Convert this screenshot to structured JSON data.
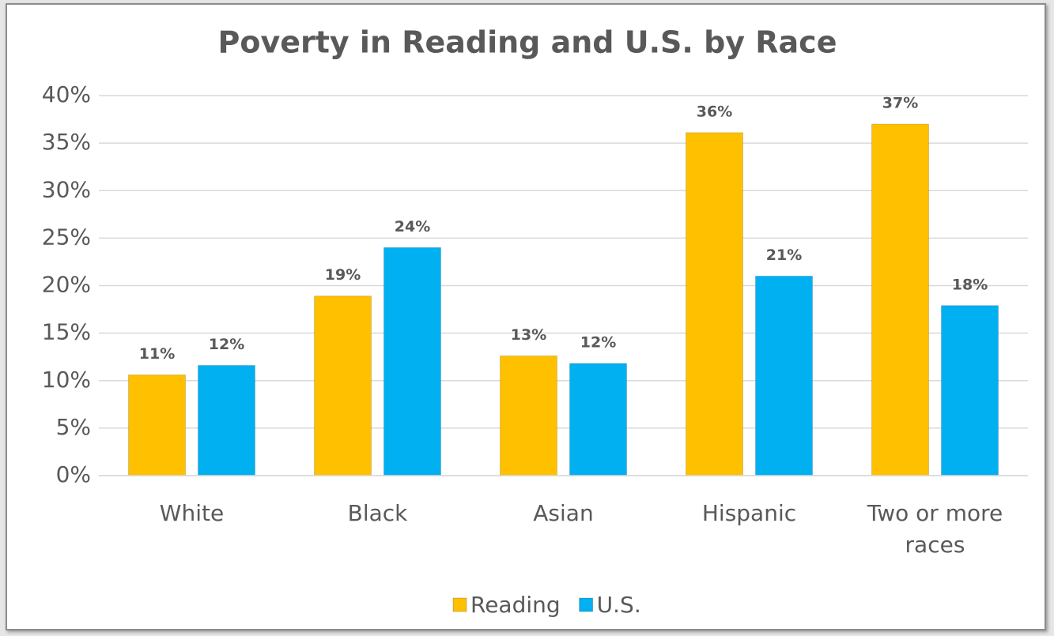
{
  "chart_data": {
    "type": "bar",
    "title": "Poverty in Reading and U.S. by Race",
    "categories": [
      "White",
      "Black",
      "Asian",
      "Hispanic",
      "Two or more races"
    ],
    "series": [
      {
        "name": "Reading",
        "color": "#ffc000",
        "values": [
          10.6,
          18.9,
          12.6,
          36.1,
          37.0
        ],
        "value_labels": [
          "11%",
          "19%",
          "13%",
          "36%",
          "37%"
        ]
      },
      {
        "name": "U.S.",
        "color": "#00b0f0",
        "values": [
          11.6,
          24.0,
          11.8,
          21.0,
          17.9
        ],
        "value_labels": [
          "12%",
          "24%",
          "12%",
          "21%",
          "18%"
        ]
      }
    ],
    "ylim": [
      0,
      40
    ],
    "yticks": [
      {
        "value": 0,
        "label": "0%"
      },
      {
        "value": 5,
        "label": "5%"
      },
      {
        "value": 10,
        "label": "10%"
      },
      {
        "value": 15,
        "label": "15%"
      },
      {
        "value": 20,
        "label": "20%"
      },
      {
        "value": 25,
        "label": "25%"
      },
      {
        "value": 30,
        "label": "30%"
      },
      {
        "value": 35,
        "label": "35%"
      },
      {
        "value": 40,
        "label": "40%"
      }
    ],
    "grid": true,
    "legend": "bottom"
  }
}
